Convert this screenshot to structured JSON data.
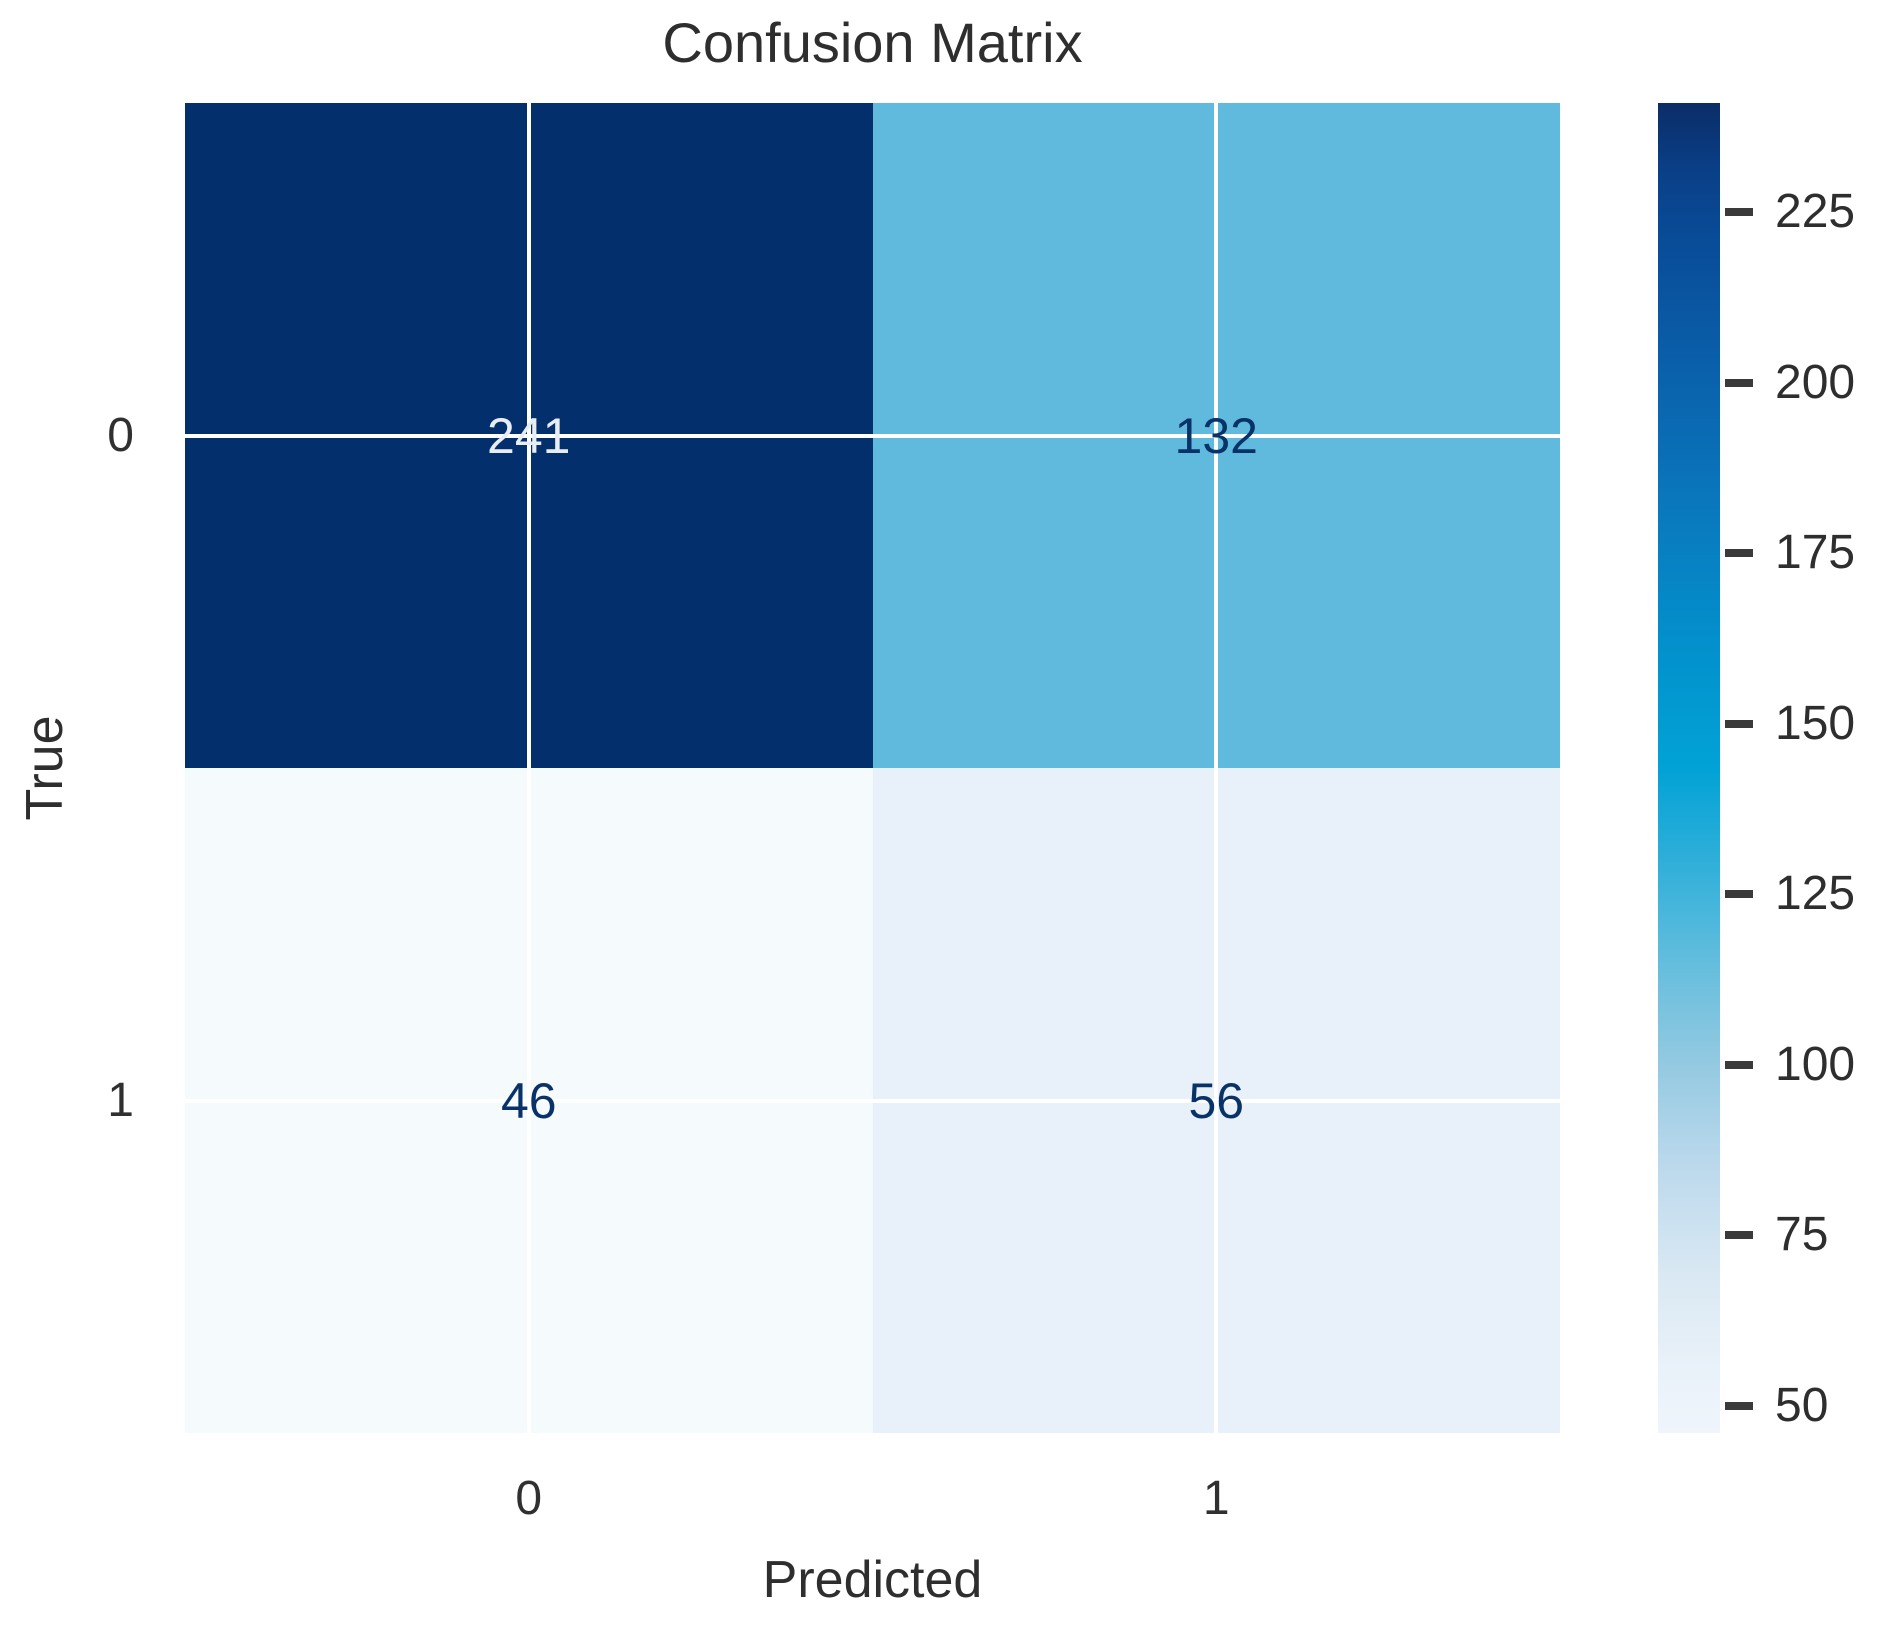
{
  "title": "Confusion Matrix",
  "chart_data": {
    "type": "heatmap",
    "title": "Confusion Matrix",
    "xlabel": "Predicted",
    "ylabel": "True",
    "x_tick_labels": [
      "0",
      "1"
    ],
    "y_tick_labels": [
      "0",
      "1"
    ],
    "matrix": [
      [
        241,
        132
      ],
      [
        46,
        56
      ]
    ],
    "cell_colors": [
      [
        "#032f6c",
        "#5fbade"
      ],
      [
        "#f5fafd",
        "#e8f1fa"
      ]
    ],
    "annotation_colors": [
      [
        "#e8ecf3",
        "#093368"
      ],
      [
        "#093368",
        "#093368"
      ]
    ],
    "gridline_color": "#ffffff",
    "grid": true,
    "colormap": "Blues",
    "colorbar": {
      "vmin": 46,
      "vmax": 241,
      "ticks": [
        50,
        75,
        100,
        125,
        150,
        175,
        200,
        225
      ],
      "legend_position": "right",
      "gradient_top_to_bottom": [
        {
          "pos": 0.0,
          "color": "#0b2d67"
        },
        {
          "pos": 0.05,
          "color": "#0a3f87"
        },
        {
          "pos": 0.1,
          "color": "#094b97"
        },
        {
          "pos": 0.2,
          "color": "#0a60ab"
        },
        {
          "pos": 0.3,
          "color": "#0a77bc"
        },
        {
          "pos": 0.4,
          "color": "#038fcb"
        },
        {
          "pos": 0.5,
          "color": "#01a2d6"
        },
        {
          "pos": 0.58,
          "color": "#35b1da"
        },
        {
          "pos": 0.65,
          "color": "#66bedd"
        },
        {
          "pos": 0.72,
          "color": "#92c9e1"
        },
        {
          "pos": 0.8,
          "color": "#bcd9ec"
        },
        {
          "pos": 0.88,
          "color": "#d9e8f3"
        },
        {
          "pos": 0.95,
          "color": "#e9f1f9"
        },
        {
          "pos": 1.0,
          "color": "#eff5fb"
        }
      ]
    }
  },
  "colors": {
    "text": "#2e2e2e",
    "background": "#ffffff"
  }
}
